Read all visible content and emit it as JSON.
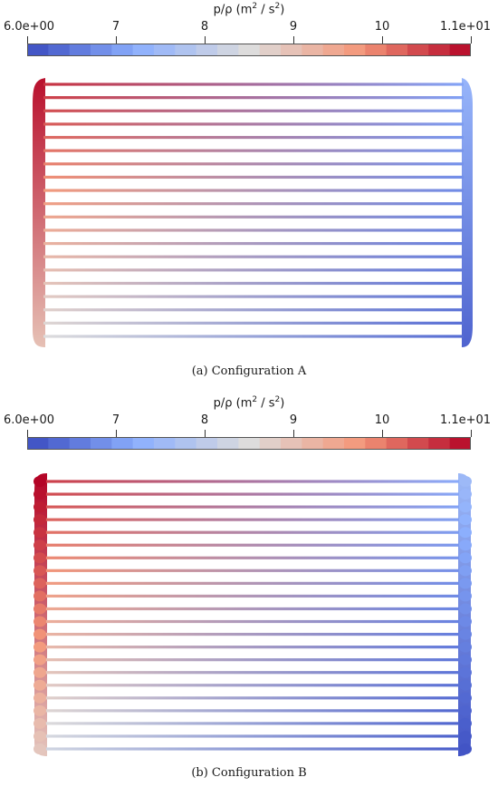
{
  "colorbar": {
    "title_prefix": "p/ρ (m",
    "title_sup1": "2",
    "title_mid": " / s",
    "title_sup2": "2",
    "title_suffix": ")",
    "min": 6,
    "max": 11,
    "ticks": [
      {
        "label": "6.0e+00",
        "value": 6
      },
      {
        "label": "7",
        "value": 7
      },
      {
        "label": "8",
        "value": 8
      },
      {
        "label": "9",
        "value": 9
      },
      {
        "label": "10",
        "value": 10
      },
      {
        "label": "1.1e+01",
        "value": 11
      }
    ],
    "colors": [
      "#3b4cc0",
      "#8db0fe",
      "#dddcdc",
      "#f4987a",
      "#b40426"
    ]
  },
  "panels": [
    {
      "caption": "(a)  Configuration A",
      "tubes": 20,
      "header_style": "smooth",
      "left_header_top_value": 10.9,
      "left_header_bottom_value": 9.0,
      "right_header_top_value": 7.4,
      "right_header_bottom_value": 6.3,
      "tube_inlet_top_value": 10.6,
      "tube_inlet_bottom_value": 8.5,
      "tube_outlet_top_value": 7.1,
      "tube_outlet_bottom_value": 6.4
    },
    {
      "caption": "(b)  Configuration B",
      "tubes": 22,
      "header_style": "bulged",
      "left_header_top_value": 11.0,
      "left_header_bottom_value": 8.9,
      "right_header_top_value": 7.5,
      "right_header_bottom_value": 6.1,
      "tube_inlet_top_value": 10.5,
      "tube_inlet_bottom_value": 8.3,
      "tube_outlet_top_value": 7.2,
      "tube_outlet_bottom_value": 6.2
    }
  ]
}
